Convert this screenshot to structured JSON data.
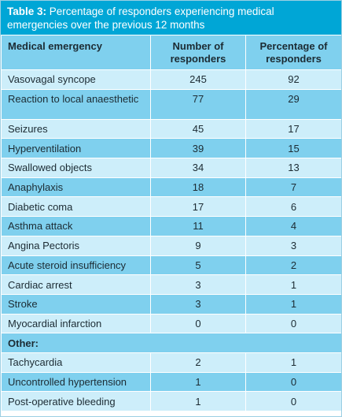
{
  "caption": {
    "label": "Table 3:",
    "text": " Percentage of responders experiencing medical emergencies over the previous 12 months"
  },
  "headers": {
    "col1": "Medical emergency",
    "col2": "Number of responders",
    "col3": "Percentage of responders"
  },
  "rows": [
    {
      "name": "Vasovagal syncope",
      "number": "245",
      "percent": "92"
    },
    {
      "name": "Reaction to local anaesthetic",
      "number": "77",
      "percent": "29"
    },
    {
      "name": "Seizures",
      "number": "45",
      "percent": "17"
    },
    {
      "name": "Hyperventilation",
      "number": "39",
      "percent": "15"
    },
    {
      "name": "Swallowed objects",
      "number": "34",
      "percent": "13"
    },
    {
      "name": "Anaphylaxis",
      "number": "18",
      "percent": "7"
    },
    {
      "name": "Diabetic coma",
      "number": "17",
      "percent": "6"
    },
    {
      "name": "Asthma attack",
      "number": "11",
      "percent": "4"
    },
    {
      "name": "Angina Pectoris",
      "number": "9",
      "percent": "3"
    },
    {
      "name": "Acute steroid insufficiency",
      "number": "5",
      "percent": "2"
    },
    {
      "name": "Cardiac arrest",
      "number": "3",
      "percent": "1"
    },
    {
      "name": "Stroke",
      "number": "3",
      "percent": "1"
    },
    {
      "name": "Myocardial infarction",
      "number": "0",
      "percent": "0"
    }
  ],
  "other_label": "Other:",
  "other_rows": [
    {
      "name": "Tachycardia",
      "number": "2",
      "percent": "1"
    },
    {
      "name": "Uncontrolled hypertension",
      "number": "1",
      "percent": "0"
    },
    {
      "name": "Post-operative bleeding",
      "number": "1",
      "percent": "0"
    }
  ],
  "colors": {
    "caption_bg": "#00a6d6",
    "band_dark": "#7fd0ee",
    "band_light": "#cdeefa"
  }
}
